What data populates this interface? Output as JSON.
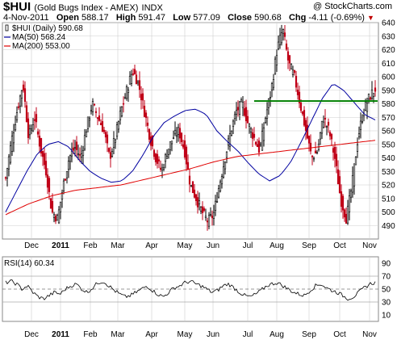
{
  "header": {
    "ticker": "$HUI",
    "name": "(Gold Bugs Index - AMEX)",
    "exchange": "INDX",
    "watermark": "@ StockCharts.com",
    "date": "4-Nov-2011",
    "open_label": "Open",
    "open": "588.17",
    "high_label": "High",
    "high": "591.47",
    "low_label": "Low",
    "low": "577.09",
    "close_label": "Close",
    "close": "590.68",
    "chg_label": "Chg",
    "chg": "-4.11 (-0.69%)"
  },
  "legend": {
    "price": "$HUI (Daily) 590.68",
    "ma50": "MA(50) 568.24",
    "ma200": "MA(200) 553.00"
  },
  "rsi_label": "RSI(14) 60.34",
  "colors": {
    "candles": "#000000",
    "candles_down": "#c00018",
    "ma50": "#0000a0",
    "ma200": "#e00000",
    "resistance": "#008000",
    "grid": "#cccccc",
    "rsi": "#000000"
  },
  "chart_data": [
    {
      "type": "candlestick",
      "title": "$HUI (Gold Bugs Index - AMEX)",
      "x_months": [
        "Dec",
        "2011",
        "Feb",
        "Mar",
        "Apr",
        "May",
        "Jun",
        "Jul",
        "Aug",
        "Sep",
        "Oct",
        "Nov"
      ],
      "ylim": [
        480,
        640
      ],
      "yticks": [
        490,
        500,
        510,
        520,
        530,
        540,
        550,
        560,
        570,
        580,
        590,
        600,
        610,
        620,
        630,
        640
      ],
      "price_anchors": [
        525,
        552,
        575,
        595,
        555,
        570,
        548,
        530,
        500,
        495,
        520,
        540,
        548,
        540,
        562,
        580,
        570,
        560,
        540,
        555,
        575,
        590,
        605,
        595,
        575,
        555,
        540,
        530,
        545,
        555,
        560,
        545,
        520,
        510,
        500,
        493,
        498,
        520,
        540,
        560,
        575,
        580,
        565,
        555,
        545,
        570,
        590,
        620,
        635,
        610,
        600,
        580,
        560,
        540,
        545,
        570,
        560,
        540,
        510,
        495,
        520,
        555,
        575,
        585,
        591
      ],
      "ma50_anchors": [
        500,
        515,
        530,
        543,
        550,
        552,
        548,
        538,
        530,
        525,
        522,
        523,
        530,
        542,
        556,
        566,
        571,
        575,
        576,
        572,
        560,
        552,
        545,
        536,
        528,
        523,
        527,
        537,
        552,
        568,
        584,
        595,
        590,
        581,
        572,
        568
      ],
      "ma200_anchors": [
        498,
        506,
        512,
        516,
        518,
        520,
        524,
        528,
        532,
        537,
        541,
        543,
        545,
        547,
        549,
        551,
        553
      ],
      "resistance_level": 582,
      "series": [
        {
          "name": "$HUI (Daily)",
          "last": 590.68
        },
        {
          "name": "MA(50)",
          "last": 568.24
        },
        {
          "name": "MA(200)",
          "last": 553.0
        }
      ]
    },
    {
      "type": "line",
      "title": "RSI(14) 60.34",
      "x_months": [
        "Dec",
        "2011",
        "Feb",
        "Mar",
        "Apr",
        "May",
        "Jun",
        "Jul",
        "Aug",
        "Sep",
        "Oct",
        "Nov"
      ],
      "ylim": [
        0,
        100
      ],
      "yticks": [
        10,
        30,
        50,
        70,
        90
      ],
      "reference_lines": [
        30,
        50,
        70
      ],
      "rsi_anchors": [
        60,
        62,
        58,
        50,
        55,
        45,
        38,
        35,
        40,
        45,
        42,
        50,
        55,
        58,
        50,
        45,
        52,
        60,
        62,
        55,
        48,
        42,
        38,
        40,
        45,
        50,
        55,
        48,
        42,
        38,
        45,
        52,
        55,
        60,
        62,
        58,
        55,
        50,
        45,
        48,
        55,
        58,
        52,
        45,
        40,
        38,
        42,
        48,
        55,
        58,
        60,
        55,
        50,
        45,
        42,
        40,
        48,
        55,
        58,
        52,
        48,
        45,
        40,
        35,
        38,
        45,
        52,
        58,
        60
      ]
    }
  ]
}
